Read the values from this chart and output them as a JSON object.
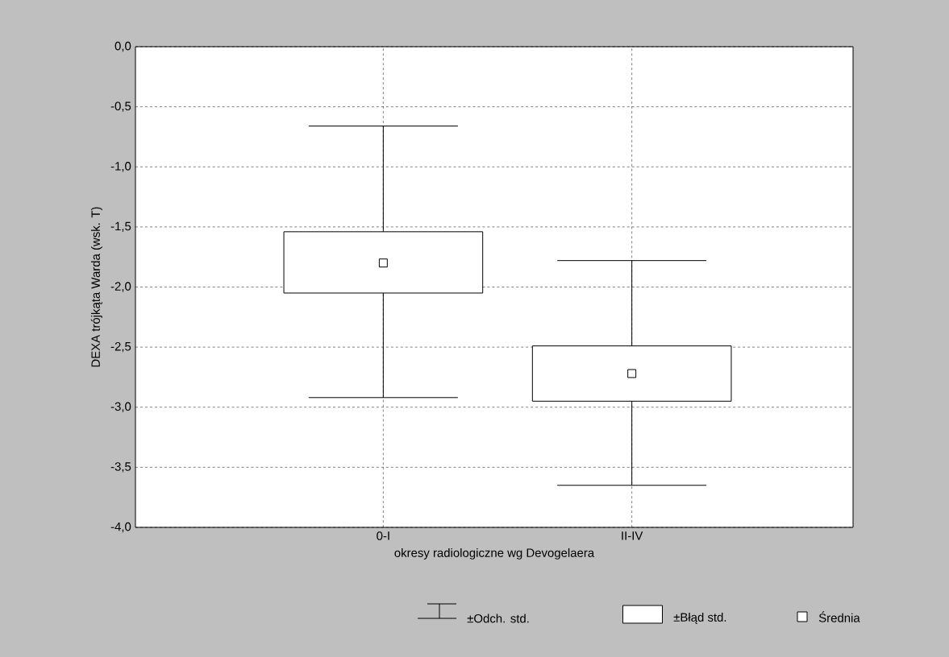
{
  "chart_data": {
    "type": "box",
    "xlabel": "okresy radiologiczne wg Devogelaera",
    "ylabel": "DEXA trójkąta Warda (wsk. T)",
    "categories": [
      "0-I",
      "II-IV"
    ],
    "boxes": [
      {
        "low": -2.92,
        "q1": -2.05,
        "q3": -1.54,
        "high": -0.66,
        "mean": -1.8
      },
      {
        "low": -3.65,
        "q1": -2.95,
        "q3": -2.49,
        "high": -1.78,
        "mean": -2.72
      }
    ],
    "color": "#000000",
    "ylim": [
      -4.0,
      0.0
    ],
    "yticks": [
      {
        "value": -4.0,
        "label": "-4,0"
      },
      {
        "value": -3.5,
        "label": "-3,5"
      },
      {
        "value": -3.0,
        "label": "-3,0"
      },
      {
        "value": -2.5,
        "label": "-2,5"
      },
      {
        "value": -2.0,
        "label": "-2,0"
      },
      {
        "value": -1.5,
        "label": "-1,5"
      },
      {
        "value": -1.0,
        "label": "-1,0"
      },
      {
        "value": -0.5,
        "label": "-0,5"
      },
      {
        "value": 0.0,
        "label": "0,0"
      }
    ],
    "grid": true,
    "marker": "square",
    "annotations": [
      "±Odch. std.",
      "±Błąd std.",
      "Średnia"
    ]
  }
}
